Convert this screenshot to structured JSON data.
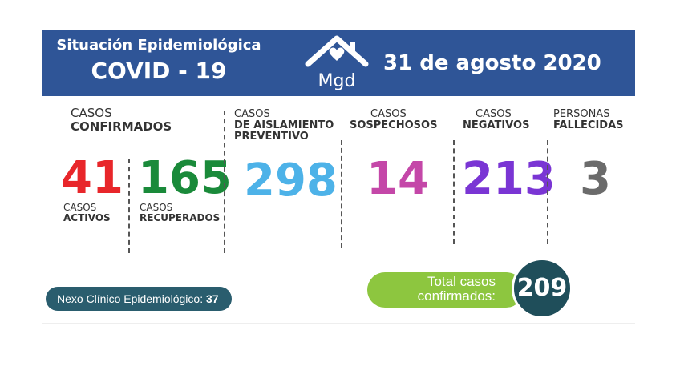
{
  "header": {
    "title": "Situación Epidemiológica",
    "subtitle": "COVID - 19",
    "logo_text": "Mgd",
    "date": "31 de agosto 2020"
  },
  "confirmed": {
    "line1": "CASOS",
    "line2": "CONFIRMADOS"
  },
  "active": {
    "value": "41",
    "line1": "CASOS",
    "line2": "ACTIVOS"
  },
  "recovered": {
    "value": "165",
    "line1": "CASOS",
    "line2": "RECUPERADOS"
  },
  "isolation": {
    "line1": "CASOS",
    "line2": "DE AISLAMIENTO",
    "line3": "PREVENTIVO",
    "value": "298"
  },
  "suspected": {
    "line1": "CASOS",
    "line2": "SOSPECHOSOS",
    "value": "14"
  },
  "negative": {
    "line1": "CASOS",
    "line2": "NEGATIVOS",
    "value": "213"
  },
  "deceased": {
    "line1": "PERSONAS",
    "line2": "FALLECIDAS",
    "value": "3"
  },
  "nexo": {
    "label": "Nexo Clínico Epidemiológico:",
    "value": "37"
  },
  "total": {
    "line1": "Total casos",
    "line2": "confirmados:",
    "value": "209"
  },
  "colors": {
    "banner": "#2f5597",
    "active": "#e8262a",
    "recovered": "#1a8a3a",
    "isolation": "#4db2e8",
    "suspected": "#c447a8",
    "negative": "#7a35d4",
    "deceased": "#6b6b6b",
    "pill": "#8dc63f",
    "circle": "#1f4e5a",
    "nexo": "#2a5d6e"
  },
  "icons": {
    "logo": "house-heart-icon"
  }
}
